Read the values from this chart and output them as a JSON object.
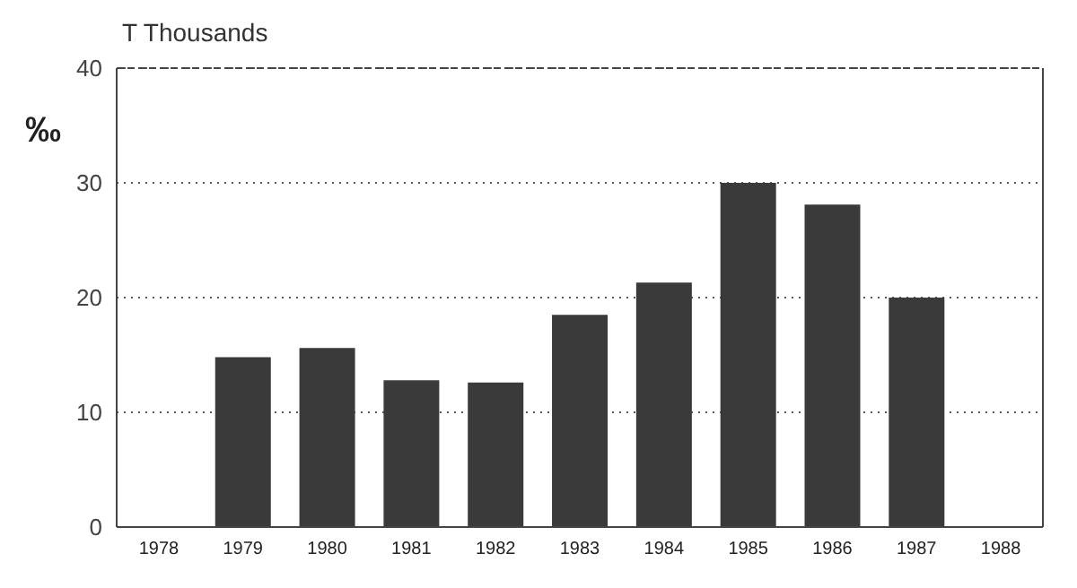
{
  "chart_data": {
    "type": "bar",
    "title": "T Thousands",
    "ylabel": "‰",
    "categories": [
      "1978",
      "1979",
      "1980",
      "1981",
      "1982",
      "1983",
      "1984",
      "1985",
      "1986",
      "1987",
      "1988"
    ],
    "values": [
      null,
      14.8,
      15.6,
      12.8,
      12.6,
      18.5,
      21.3,
      30,
      28.1,
      20,
      null
    ],
    "color": "#3a3a3a",
    "ylim": [
      0,
      40
    ],
    "yticks": [
      0,
      10,
      20,
      30,
      40
    ],
    "grid": "y"
  }
}
